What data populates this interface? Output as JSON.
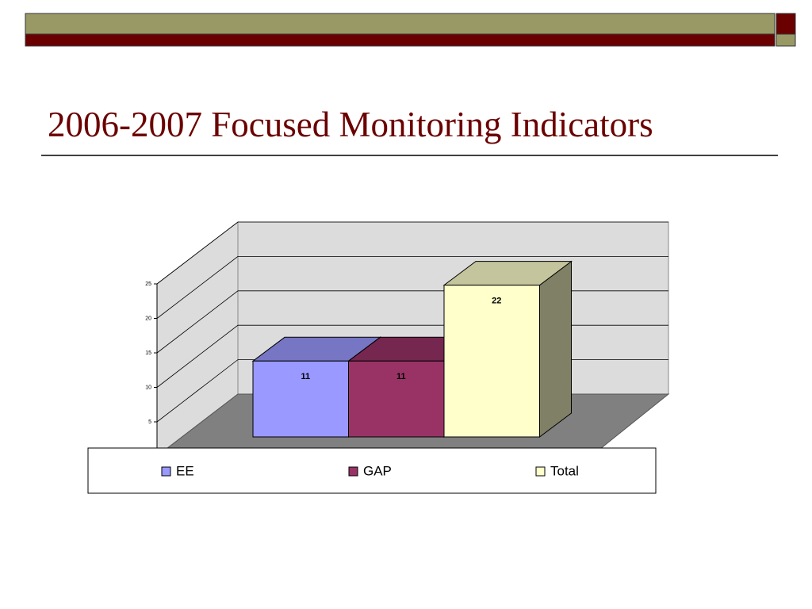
{
  "chart_data": {
    "type": "bar",
    "title": "2006-2007 Focused Monitoring Indicators",
    "series": [
      {
        "name": "EE",
        "color": "#9999ff",
        "values": [
          11
        ]
      },
      {
        "name": "GAP",
        "color": "#993366",
        "values": [
          11
        ]
      },
      {
        "name": "Total",
        "color": "#ffffcc",
        "values": [
          22
        ]
      }
    ],
    "ylim": [
      0,
      25
    ],
    "yticks": [
      5,
      10,
      15,
      20,
      25
    ],
    "grid": true,
    "legend": "bottom"
  }
}
